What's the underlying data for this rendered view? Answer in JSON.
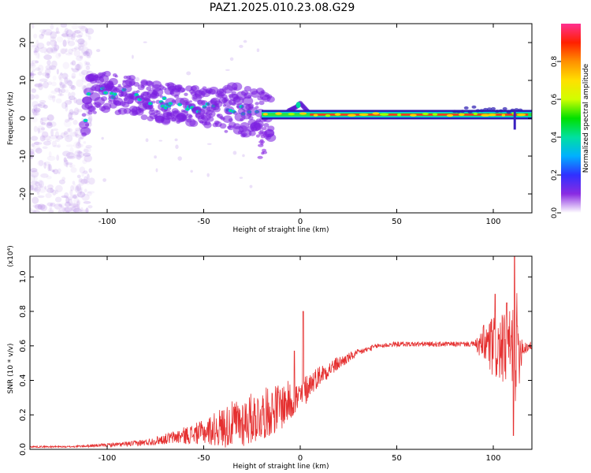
{
  "title": "PAZ1.2025.010.23.08.G29",
  "colorbar": {
    "label": "Normalized spectral amplitude",
    "ticks": [
      "0.0",
      "0.2",
      "0.4",
      "0.6",
      "0.8"
    ],
    "range": [
      0,
      1
    ],
    "colormap": [
      "#ffffff",
      "#8a2be2",
      "#3030ff",
      "#00b0ff",
      "#00e0a0",
      "#00e000",
      "#d0ff00",
      "#ffe000",
      "#ff9000",
      "#ff2000",
      "#ff3090"
    ]
  },
  "chart_data": [
    {
      "type": "heatmap",
      "name": "spectrogram",
      "xlabel": "Height of straight line (km)",
      "ylabel": "Frequency (Hz)",
      "xlim": [
        -140,
        120
      ],
      "ylim": [
        -25,
        25
      ],
      "x_ticks": [
        "-100",
        "-50",
        "0",
        "50",
        "100"
      ],
      "y_ticks": [
        "-20",
        "-10",
        "0",
        "10",
        "20"
      ],
      "description_features": {
        "dominant_ridge": [
          [
            -110,
            6
          ],
          [
            -100,
            7
          ],
          [
            -90,
            6
          ],
          [
            -80,
            5
          ],
          [
            -70,
            4
          ],
          [
            -60,
            3.5
          ],
          [
            -50,
            3
          ],
          [
            -40,
            2.5
          ],
          [
            -30,
            2
          ],
          [
            -20,
            1
          ],
          [
            -10,
            1
          ],
          [
            -2,
            3
          ],
          [
            0,
            4
          ],
          [
            5,
            1.2
          ],
          [
            50,
            1
          ],
          [
            80,
            1.2
          ],
          [
            100,
            1.5
          ],
          [
            112,
            0.5
          ]
        ],
        "scatter_region_x": [
          -140,
          -108
        ],
        "scatter_region_freq": [
          -25,
          25
        ]
      }
    },
    {
      "type": "line",
      "name": "snr",
      "xlabel": "Height of straight line (km)",
      "ylabel": "SNR (10 * v/v)",
      "y_multiplier": "(x10⁴)",
      "xlim": [
        -140,
        120
      ],
      "ylim": [
        0,
        1.12
      ],
      "x_ticks": [
        "-100",
        "-50",
        "0",
        "50",
        "100"
      ],
      "y_ticks": [
        "0.0",
        "0.2",
        "0.4",
        "0.6",
        "0.8",
        "1.0"
      ],
      "color": "#e53030",
      "envelope": {
        "x": [
          -140,
          -120,
          -100,
          -90,
          -80,
          -70,
          -60,
          -50,
          -40,
          -30,
          -20,
          -10,
          -5,
          0,
          2,
          5,
          10,
          20,
          30,
          40,
          50,
          60,
          70,
          80,
          90,
          93,
          98,
          103,
          106,
          110,
          112,
          115,
          120
        ],
        "y": [
          0.015,
          0.015,
          0.025,
          0.03,
          0.04,
          0.06,
          0.08,
          0.1,
          0.13,
          0.16,
          0.2,
          0.25,
          0.28,
          0.3,
          0.33,
          0.38,
          0.43,
          0.5,
          0.56,
          0.6,
          0.61,
          0.61,
          0.61,
          0.61,
          0.61,
          0.6,
          0.6,
          0.58,
          0.58,
          0.58,
          0.58,
          0.59,
          0.6
        ],
        "amp": [
          0.005,
          0.005,
          0.01,
          0.015,
          0.02,
          0.03,
          0.05,
          0.07,
          0.12,
          0.15,
          0.15,
          0.14,
          0.12,
          0.1,
          0.1,
          0.07,
          0.06,
          0.04,
          0.02,
          0.015,
          0.015,
          0.015,
          0.015,
          0.015,
          0.015,
          0.07,
          0.18,
          0.2,
          0.2,
          0.25,
          0.35,
          0.06,
          0.02
        ]
      },
      "spikes": [
        {
          "x": 1.5,
          "y": 0.8
        },
        {
          "x": -3,
          "y": 0.57
        },
        {
          "x": 95,
          "y": 0.72
        },
        {
          "x": 101,
          "y": 0.9
        },
        {
          "x": 107,
          "y": 0.85
        },
        {
          "x": 111,
          "y": 1.12
        },
        {
          "x": 110.5,
          "y": 0.08
        }
      ]
    }
  ]
}
